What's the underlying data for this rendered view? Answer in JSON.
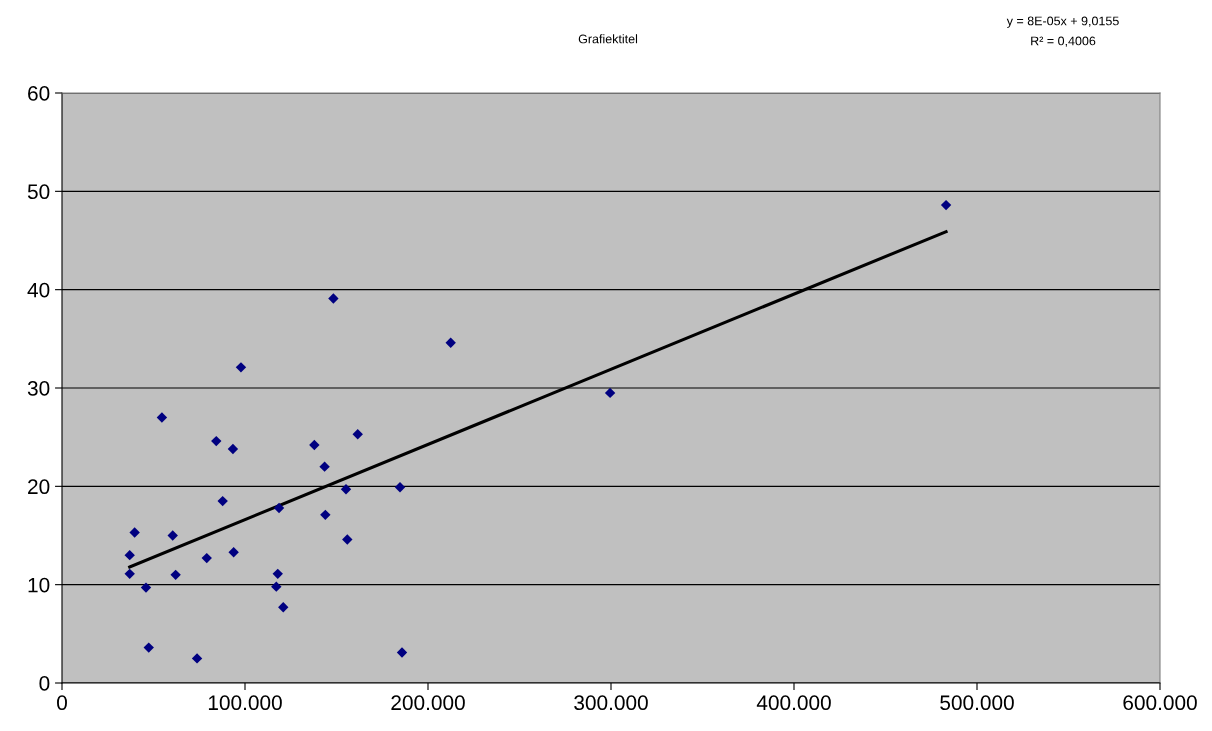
{
  "chart_data": {
    "type": "scatter",
    "title": "Grafiektitel",
    "annotations": [
      "y = 8E-05x + 9,0155",
      "R² = 0,4006"
    ],
    "series": [
      {
        "color": "#000080",
        "marker": "diamond",
        "x": [
          37000,
          37000,
          39700,
          45900,
          47400,
          54600,
          60500,
          62100,
          73800,
          79100,
          84300,
          87800,
          93400,
          93800,
          97800,
          117900,
          117100,
          118600,
          120900,
          137900,
          143500,
          143900,
          148300,
          155200,
          155900,
          161600,
          184700,
          185800,
          212400,
          299500,
          483100
        ],
        "values": [
          11.1,
          13.0,
          15.3,
          9.7,
          3.6,
          27.0,
          15.0,
          11.0,
          2.5,
          12.7,
          24.6,
          18.5,
          23.8,
          13.3,
          32.1,
          11.1,
          9.8,
          17.8,
          7.7,
          24.2,
          22.0,
          17.1,
          39.1,
          19.7,
          14.6,
          25.3,
          19.9,
          3.1,
          34.6,
          29.5,
          48.6
        ]
      },
      {
        "type": "line",
        "color": "#000000",
        "marker": "none",
        "line_style": "solid",
        "x": [
          37000,
          483100
        ],
        "values": [
          11.8,
          45.9
        ]
      }
    ],
    "xlim": [
      0,
      600000
    ],
    "xticks": [
      0,
      {
        "value": 100000,
        "label": "100.000"
      },
      {
        "value": 200000,
        "label": "200.000"
      },
      {
        "value": 300000,
        "label": "300.000"
      },
      {
        "value": 400000,
        "label": "400.000"
      },
      {
        "value": 500000,
        "label": "500.000"
      },
      {
        "value": 600000,
        "label": "600.000"
      }
    ],
    "ylim": [
      0,
      60
    ],
    "yticks": [
      0,
      10,
      20,
      30,
      40,
      50,
      60
    ],
    "grid": "y",
    "legend": false
  }
}
